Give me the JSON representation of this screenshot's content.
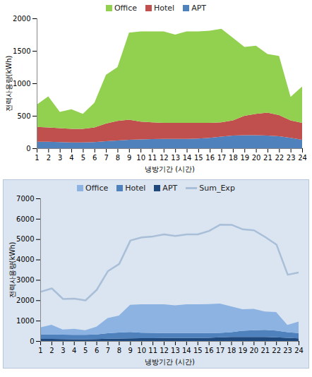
{
  "chart_data": [
    {
      "type": "area",
      "stacked": true,
      "grid": false,
      "legend": "top",
      "x_label": "냉방기간 (시간)",
      "y_label": "전력사용량(kWh)",
      "x": [
        1,
        2,
        3,
        4,
        5,
        6,
        7,
        8,
        9,
        10,
        11,
        12,
        13,
        14,
        15,
        16,
        17,
        18,
        19,
        20,
        21,
        22,
        23,
        24
      ],
      "xlim": [
        1,
        24
      ],
      "xticks": [
        1,
        2,
        3,
        4,
        5,
        6,
        7,
        8,
        9,
        10,
        11,
        12,
        13,
        14,
        15,
        16,
        17,
        18,
        19,
        20,
        21,
        22,
        23,
        24
      ],
      "ylim": [
        0,
        2000
      ],
      "yticks": [
        0,
        500,
        1000,
        1500,
        2000
      ],
      "series": [
        {
          "name": "Office",
          "color": "#92d050",
          "values": [
            340,
            480,
            250,
            300,
            230,
            380,
            750,
            830,
            1340,
            1390,
            1400,
            1410,
            1360,
            1410,
            1410,
            1420,
            1440,
            1270,
            1060,
            1050,
            900,
            910,
            360,
            560
          ]
        },
        {
          "name": "Hotel",
          "color": "#c0504d",
          "values": [
            230,
            220,
            215,
            210,
            210,
            225,
            270,
            300,
            310,
            275,
            260,
            245,
            245,
            245,
            240,
            230,
            220,
            235,
            300,
            330,
            355,
            325,
            270,
            260
          ]
        },
        {
          "name": "APT",
          "color": "#4f81bd",
          "values": [
            100,
            100,
            95,
            90,
            90,
            95,
            110,
            120,
            130,
            135,
            140,
            145,
            145,
            145,
            150,
            160,
            180,
            195,
            200,
            200,
            195,
            185,
            160,
            130
          ]
        }
      ]
    },
    {
      "type": "area",
      "stacked": true,
      "grid": false,
      "legend": "top",
      "x_label": "냉방기간 (시간)",
      "y_label": "전력사용량(kWh)",
      "x": [
        1,
        2,
        3,
        4,
        5,
        6,
        7,
        8,
        9,
        10,
        11,
        12,
        13,
        14,
        15,
        16,
        17,
        18,
        19,
        20,
        21,
        22,
        23,
        24
      ],
      "xlim": [
        1,
        24
      ],
      "xticks": [
        1,
        2,
        3,
        4,
        5,
        6,
        7,
        8,
        9,
        10,
        11,
        12,
        13,
        14,
        15,
        16,
        17,
        18,
        19,
        20,
        21,
        22,
        23,
        24
      ],
      "ylim": [
        0,
        7000
      ],
      "yticks": [
        0,
        1000,
        2000,
        3000,
        4000,
        5000,
        6000,
        7000
      ],
      "series": [
        {
          "name": "Office",
          "color": "#8db3e2",
          "values": [
            340,
            480,
            250,
            300,
            230,
            380,
            750,
            830,
            1340,
            1390,
            1400,
            1410,
            1360,
            1410,
            1410,
            1420,
            1440,
            1270,
            1060,
            1050,
            900,
            910,
            360,
            560
          ]
        },
        {
          "name": "Hotel",
          "color": "#4f81bd",
          "values": [
            230,
            220,
            215,
            210,
            210,
            225,
            270,
            300,
            310,
            275,
            260,
            245,
            245,
            245,
            240,
            230,
            220,
            235,
            300,
            330,
            355,
            325,
            270,
            260
          ]
        },
        {
          "name": "APT",
          "color": "#1f497d",
          "values": [
            100,
            100,
            95,
            90,
            90,
            95,
            110,
            120,
            130,
            135,
            140,
            145,
            145,
            145,
            150,
            160,
            180,
            195,
            200,
            200,
            195,
            185,
            160,
            130
          ]
        },
        {
          "name": "Sum_Exp",
          "type": "line",
          "color": "#a9bfd8",
          "values": [
            2430,
            2600,
            2080,
            2100,
            2010,
            2530,
            3450,
            3800,
            4950,
            5100,
            5150,
            5250,
            5170,
            5250,
            5250,
            5420,
            5730,
            5720,
            5500,
            5450,
            5120,
            4750,
            3270,
            3380
          ]
        }
      ]
    }
  ]
}
